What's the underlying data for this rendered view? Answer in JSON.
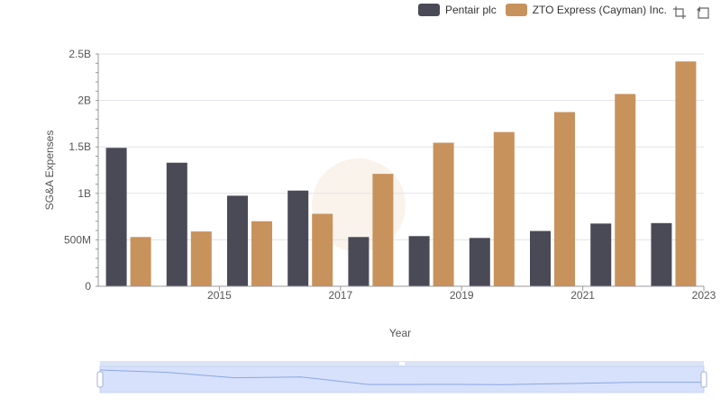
{
  "legend": {
    "series0": "Pentair plc",
    "series1": "ZTO Express (Cayman) Inc."
  },
  "toolbar": {
    "icons": [
      "zoom-select-icon",
      "zoom-reset-icon"
    ]
  },
  "colors": {
    "pentair": "#4a4a57",
    "zto": "#c8925c",
    "grid": "#e3e3ea",
    "slider_fill": "#d7e1fb",
    "slider_line": "#8aa6e6"
  },
  "chart_data": {
    "type": "bar",
    "xlabel": "Year",
    "ylabel": "SG&A Expenses",
    "ylim": [
      0,
      2500000000
    ],
    "y_ticks": [
      0,
      500000000,
      1000000000,
      1500000000,
      2000000000,
      2500000000
    ],
    "y_tick_labels": [
      "0",
      "500M",
      "1B",
      "1.5B",
      "2B",
      "2.5B"
    ],
    "categories": [
      2014,
      2015,
      2016,
      2017,
      2018,
      2019,
      2020,
      2021,
      2022,
      2023
    ],
    "x_tick_labels": [
      "2015",
      "2017",
      "2019",
      "2021",
      "2023"
    ],
    "series": [
      {
        "name": "Pentair plc",
        "values": [
          1490000000,
          1330000000,
          975000000,
          1030000000,
          530000000,
          540000000,
          520000000,
          595000000,
          675000000,
          680000000
        ]
      },
      {
        "name": "ZTO Express (Cayman) Inc.",
        "values": [
          530000000,
          590000000,
          700000000,
          780000000,
          1210000000,
          1545000000,
          1660000000,
          1875000000,
          2070000000,
          2420000000
        ]
      }
    ],
    "grid": true,
    "legend_position": "top-right"
  }
}
